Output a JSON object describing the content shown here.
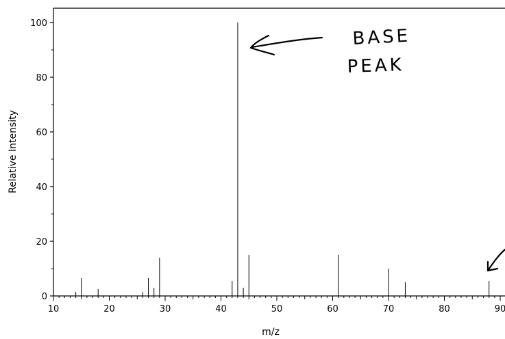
{
  "chart_data": {
    "type": "bar",
    "xlabel": "m/z",
    "ylabel": "Relative Intensity",
    "xlim": [
      10,
      91
    ],
    "ylim": [
      0,
      105
    ],
    "x_ticks": [
      10,
      20,
      30,
      40,
      50,
      60,
      70,
      80,
      90
    ],
    "y_ticks": [
      0,
      20,
      40,
      60,
      80,
      100
    ],
    "peaks": [
      {
        "mz": 14,
        "intensity": 1.5
      },
      {
        "mz": 15,
        "intensity": 6.5
      },
      {
        "mz": 18,
        "intensity": 2.5
      },
      {
        "mz": 26,
        "intensity": 1.5
      },
      {
        "mz": 27,
        "intensity": 6.5
      },
      {
        "mz": 28,
        "intensity": 3
      },
      {
        "mz": 29,
        "intensity": 14
      },
      {
        "mz": 42,
        "intensity": 5.5
      },
      {
        "mz": 43,
        "intensity": 100
      },
      {
        "mz": 44,
        "intensity": 3
      },
      {
        "mz": 45,
        "intensity": 15
      },
      {
        "mz": 61,
        "intensity": 15
      },
      {
        "mz": 70,
        "intensity": 10
      },
      {
        "mz": 73,
        "intensity": 5
      },
      {
        "mz": 88,
        "intensity": 5.5
      }
    ],
    "annotations": [
      {
        "text_lines": [
          "BASE",
          "PEAK"
        ],
        "points_to_mz": 43,
        "style": "handwritten"
      },
      {
        "text_lines": [],
        "points_to_mz": 88,
        "style": "handwritten-arrow"
      }
    ]
  }
}
